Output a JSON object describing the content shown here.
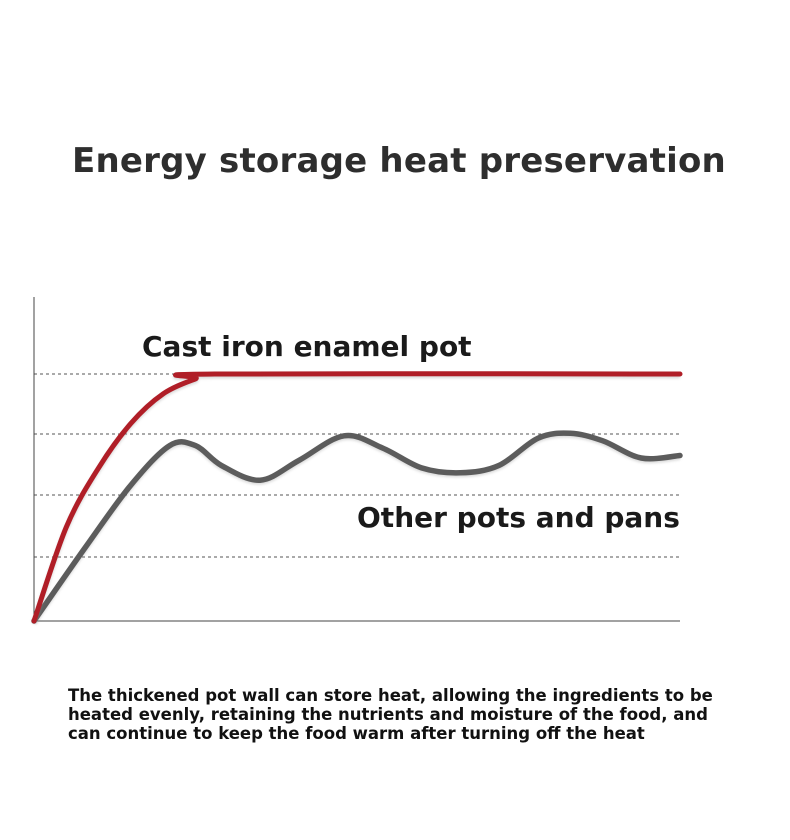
{
  "title": "Energy storage heat preservation",
  "description_lines": [
    "The thickened pot wall can store heat, allowing the ingredients to be",
    "heated evenly, retaining the nutrients and moisture of the food, and",
    "can continue to keep the food warm after turning off the heat"
  ],
  "chart_data": {
    "type": "line",
    "title": "",
    "xlabel": "",
    "ylabel": "",
    "xlim": [
      0,
      100
    ],
    "ylim": [
      0,
      100
    ],
    "grid": "dashed horizontal lines",
    "series": [
      {
        "name": "Cast iron enamel pot",
        "color": "#b01e27",
        "x": [
          0,
          5,
          10,
          15,
          20,
          25,
          28,
          100
        ],
        "y": [
          0,
          38,
          62,
          80,
          92,
          98,
          100,
          100
        ]
      },
      {
        "name": "Other pots and pans",
        "color": "#5c5c5c",
        "x": [
          0,
          8,
          15,
          21,
          25,
          29,
          35,
          41,
          48,
          54,
          60,
          66,
          72,
          78,
          83,
          88,
          94,
          100
        ],
        "y": [
          0,
          30,
          55,
          71,
          71,
          63,
          57,
          65,
          75,
          70,
          62,
          60,
          63,
          74,
          76,
          73,
          66,
          67
        ]
      }
    ]
  }
}
